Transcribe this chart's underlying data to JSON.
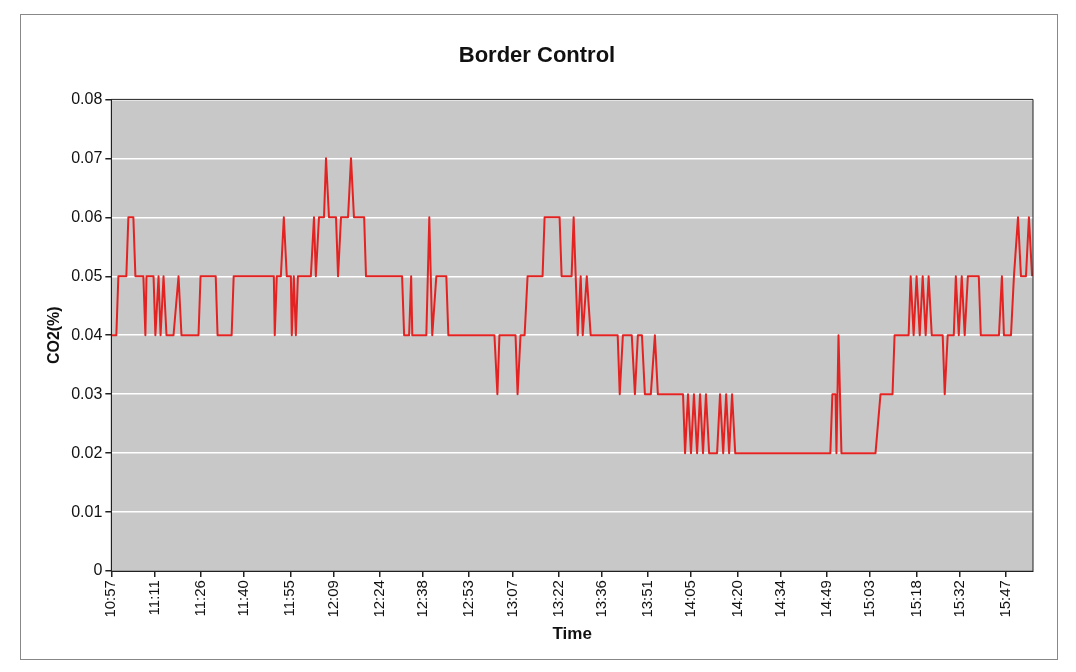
{
  "chart_data": {
    "type": "line",
    "title": "Border Control",
    "xlabel": "Time",
    "ylabel": "CO2(%)",
    "x": [
      10.95,
      10.977,
      10.988,
      11.031,
      11.042,
      11.069,
      11.08,
      11.123,
      11.134,
      11.14,
      11.178,
      11.188,
      11.205,
      11.216,
      11.232,
      11.248,
      11.286,
      11.313,
      11.329,
      11.421,
      11.432,
      11.514,
      11.524,
      11.6,
      11.611,
      11.828,
      11.833,
      11.844,
      11.866,
      11.882,
      11.898,
      11.92,
      11.925,
      11.936,
      11.947,
      11.958,
      12.028,
      12.045,
      12.055,
      12.072,
      12.099,
      12.11,
      12.126,
      12.164,
      12.175,
      12.191,
      12.229,
      12.245,
      12.261,
      12.316,
      12.326,
      12.521,
      12.532,
      12.559,
      12.57,
      12.576,
      12.652,
      12.668,
      12.684,
      12.706,
      12.76,
      12.771,
      13.02,
      13.036,
      13.047,
      13.134,
      13.145,
      13.161,
      13.183,
      13.199,
      13.28,
      13.291,
      13.372,
      13.383,
      13.437,
      13.448,
      13.459,
      13.47,
      13.486,
      13.497,
      13.519,
      13.54,
      13.686,
      13.697,
      13.714,
      13.762,
      13.779,
      13.795,
      13.817,
      13.833,
      13.865,
      13.887,
      13.903,
      14.039,
      14.05,
      14.066,
      14.082,
      14.098,
      14.115,
      14.131,
      14.147,
      14.163,
      14.18,
      14.223,
      14.239,
      14.256,
      14.272,
      14.288,
      14.304,
      14.321,
      14.835,
      14.846,
      14.863,
      14.868,
      14.879,
      14.895,
      15.079,
      15.106,
      15.171,
      15.182,
      15.258,
      15.269,
      15.285,
      15.301,
      15.318,
      15.334,
      15.35,
      15.366,
      15.383,
      15.442,
      15.453,
      15.469,
      15.502,
      15.513,
      15.529,
      15.545,
      15.561,
      15.578,
      15.637,
      15.648,
      15.746,
      15.762,
      15.773,
      15.811,
      15.827,
      15.849,
      15.865,
      15.892,
      15.908,
      15.925
    ],
    "series": [
      {
        "color": "#e32222",
        "values": [
          0.04,
          0.04,
          0.05,
          0.05,
          0.06,
          0.06,
          0.05,
          0.05,
          0.04,
          0.05,
          0.05,
          0.04,
          0.05,
          0.04,
          0.05,
          0.04,
          0.04,
          0.05,
          0.04,
          0.04,
          0.05,
          0.05,
          0.04,
          0.04,
          0.05,
          0.05,
          0.04,
          0.05,
          0.05,
          0.06,
          0.05,
          0.05,
          0.04,
          0.05,
          0.04,
          0.05,
          0.05,
          0.06,
          0.05,
          0.06,
          0.06,
          0.07,
          0.06,
          0.06,
          0.05,
          0.06,
          0.06,
          0.07,
          0.06,
          0.06,
          0.05,
          0.05,
          0.04,
          0.04,
          0.05,
          0.04,
          0.04,
          0.06,
          0.04,
          0.05,
          0.05,
          0.04,
          0.04,
          0.03,
          0.04,
          0.04,
          0.03,
          0.04,
          0.04,
          0.05,
          0.05,
          0.06,
          0.06,
          0.05,
          0.05,
          0.06,
          0.05,
          0.04,
          0.05,
          0.04,
          0.05,
          0.04,
          0.04,
          0.03,
          0.04,
          0.04,
          0.03,
          0.04,
          0.04,
          0.03,
          0.03,
          0.04,
          0.03,
          0.03,
          0.02,
          0.03,
          0.02,
          0.03,
          0.02,
          0.03,
          0.02,
          0.03,
          0.02,
          0.02,
          0.03,
          0.02,
          0.03,
          0.02,
          0.03,
          0.02,
          0.02,
          0.03,
          0.03,
          0.02,
          0.04,
          0.02,
          0.02,
          0.03,
          0.03,
          0.04,
          0.04,
          0.05,
          0.04,
          0.05,
          0.04,
          0.05,
          0.04,
          0.05,
          0.04,
          0.04,
          0.03,
          0.04,
          0.04,
          0.05,
          0.04,
          0.05,
          0.04,
          0.05,
          0.05,
          0.04,
          0.04,
          0.05,
          0.04,
          0.04,
          0.05,
          0.06,
          0.05,
          0.05,
          0.06,
          0.05
        ]
      }
    ],
    "xlim": [
      10.95,
      15.93
    ],
    "xticks": [
      {
        "value": 10.95,
        "label": "10:57"
      },
      {
        "value": 11.183,
        "label": "11:11"
      },
      {
        "value": 11.433,
        "label": "11:26"
      },
      {
        "value": 11.667,
        "label": "11:40"
      },
      {
        "value": 11.917,
        "label": "11:55"
      },
      {
        "value": 12.15,
        "label": "12:09"
      },
      {
        "value": 12.4,
        "label": "12:24"
      },
      {
        "value": 12.633,
        "label": "12:38"
      },
      {
        "value": 12.883,
        "label": "12:53"
      },
      {
        "value": 13.117,
        "label": "13:07"
      },
      {
        "value": 13.367,
        "label": "13:22"
      },
      {
        "value": 13.6,
        "label": "13:36"
      },
      {
        "value": 13.85,
        "label": "13:51"
      },
      {
        "value": 14.083,
        "label": "14:05"
      },
      {
        "value": 14.333,
        "label": "14:20"
      },
      {
        "value": 14.567,
        "label": "14:34"
      },
      {
        "value": 14.817,
        "label": "14:49"
      },
      {
        "value": 15.05,
        "label": "15:03"
      },
      {
        "value": 15.3,
        "label": "15:18"
      },
      {
        "value": 15.533,
        "label": "15:32"
      },
      {
        "value": 15.783,
        "label": "15:47"
      }
    ],
    "ylim": [
      0,
      0.08
    ],
    "yticks": [
      0,
      0.01,
      0.02,
      0.03,
      0.04,
      0.05,
      0.06,
      0.07,
      0.08
    ],
    "grid": "y",
    "legend": false,
    "marker": "none",
    "line_style": "solid"
  }
}
